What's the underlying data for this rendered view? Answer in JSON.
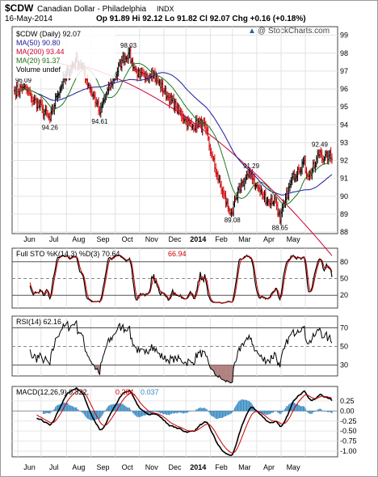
{
  "header": {
    "symbol": "$CDW",
    "name": "Canadian Dollar - Philadelphia",
    "exchange": "INDX",
    "date": "16-May-2014",
    "quote": "Op 91.89  Hi 92.12  Lo 91.82  Cl 92.07  Chg +0.16 (+0.18%)",
    "watermark": "@ StockCharts.com",
    "watermark_symbol": "▲"
  },
  "chart_data": [
    {
      "type": "line",
      "panel": "price",
      "title": "$CDW (Daily) 92.07",
      "ylim": [
        88,
        99.3
      ],
      "y_ticks": [
        "88",
        "89",
        "90",
        "91",
        "92",
        "93",
        "94",
        "95",
        "96",
        "97",
        "98",
        "99"
      ],
      "x_ticks": [
        "Jun",
        "Jul",
        "Aug",
        "Sep",
        "Oct",
        "Nov",
        "Dec",
        "2014",
        "Feb",
        "Mar",
        "Apr",
        "May"
      ],
      "colors": {
        "up": "#000000",
        "down": "#cc0000",
        "ma50": "#1a1a9c",
        "ma200": "#cc0033",
        "ma20": "#1e7a1e"
      },
      "legend": [
        {
          "label": "$CDW (Daily) 92.07",
          "color": "#000000"
        },
        {
          "label": "MA(50) 90.80",
          "color": "#1a1a9c"
        },
        {
          "label": "MA(200) 93.44",
          "color": "#cc0033"
        },
        {
          "label": "MA(20) 91.37",
          "color": "#1e7a1e"
        },
        {
          "label": "Volume undef",
          "color": "#000000"
        }
      ],
      "close_anchors": [
        [
          0,
          95.9
        ],
        [
          8,
          96.09
        ],
        [
          15,
          95.5
        ],
        [
          25,
          94.9
        ],
        [
          32,
          94.26
        ],
        [
          38,
          95.6
        ],
        [
          45,
          96.6
        ],
        [
          55,
          97.6
        ],
        [
          60,
          97.4
        ],
        [
          67,
          96.2
        ],
        [
          74,
          95.2
        ],
        [
          77,
          94.61
        ],
        [
          82,
          95.6
        ],
        [
          90,
          96.6
        ],
        [
          97,
          97.6
        ],
        [
          103,
          98.03
        ],
        [
          108,
          97.2
        ],
        [
          113,
          96.7
        ],
        [
          118,
          96.6
        ],
        [
          124,
          97.0
        ],
        [
          130,
          96.4
        ],
        [
          138,
          95.6
        ],
        [
          146,
          95.0
        ],
        [
          154,
          94.3
        ],
        [
          160,
          93.9
        ],
        [
          167,
          94.1
        ],
        [
          173,
          93.7
        ],
        [
          178,
          92.3
        ],
        [
          183,
          91.2
        ],
        [
          188,
          90.2
        ],
        [
          193,
          89.4
        ],
        [
          197,
          89.08
        ],
        [
          201,
          90.0
        ],
        [
          206,
          90.8
        ],
        [
          211,
          91.1
        ],
        [
          214,
          91.29
        ],
        [
          218,
          90.6
        ],
        [
          224,
          90.1
        ],
        [
          230,
          89.7
        ],
        [
          236,
          89.8
        ],
        [
          240,
          88.65
        ],
        [
          244,
          89.6
        ],
        [
          250,
          90.8
        ],
        [
          256,
          91.5
        ],
        [
          261,
          91.9
        ],
        [
          266,
          91.1
        ],
        [
          271,
          91.7
        ],
        [
          276,
          92.49
        ],
        [
          280,
          92.1
        ],
        [
          284,
          92.3
        ],
        [
          287,
          92.07
        ]
      ],
      "swing_labels": [
        {
          "text": "96.09",
          "i": 8,
          "v": 96.09,
          "pos": "above"
        },
        {
          "text": "94.26",
          "i": 32,
          "v": 94.26,
          "pos": "below"
        },
        {
          "text": "94.61",
          "i": 77,
          "v": 94.61,
          "pos": "below"
        },
        {
          "text": "98.03",
          "i": 103,
          "v": 98.03,
          "pos": "above"
        },
        {
          "text": "89.08",
          "i": 197,
          "v": 89.08,
          "pos": "below"
        },
        {
          "text": "91.29",
          "i": 214,
          "v": 91.29,
          "pos": "above"
        },
        {
          "text": "88.65",
          "i": 240,
          "v": 88.65,
          "pos": "below"
        },
        {
          "text": "92.49",
          "i": 276,
          "v": 92.49,
          "pos": "above"
        }
      ]
    },
    {
      "type": "line",
      "panel": "stochastic",
      "title": "Full STO %K(14,3) %D(3) 70.64, 66.94",
      "label_k": "Full STO %K(14,3) %D(3) 70.64,",
      "label_d": "66.94",
      "ylim": [
        0,
        100
      ],
      "y_ticks": [
        "80",
        "50",
        "20"
      ],
      "levels": [
        80,
        50,
        20
      ]
    },
    {
      "type": "line",
      "panel": "rsi",
      "title": "RSI(14) 62.16",
      "ylim": [
        20,
        80
      ],
      "y_ticks": [
        "70",
        "50",
        "30"
      ],
      "levels": [
        70,
        50,
        30
      ]
    },
    {
      "type": "line",
      "panel": "macd",
      "title": "MACD(12,26,9) 0.322, 0.284, 0.037",
      "label_macd": "MACD(12,26,9) 0.322,",
      "label_signal": "0.284,",
      "label_hist": "0.037",
      "ylim": [
        -1.1,
        0.55
      ],
      "y_ticks": [
        "0.25",
        "0.00",
        "-0.25",
        "-0.50",
        "-0.75",
        "-1.00"
      ],
      "x_ticks": [
        "Jun",
        "Jul",
        "Aug",
        "Sep",
        "Oct",
        "Nov",
        "Dec",
        "2014",
        "Feb",
        "Mar",
        "Apr",
        "May"
      ]
    }
  ]
}
